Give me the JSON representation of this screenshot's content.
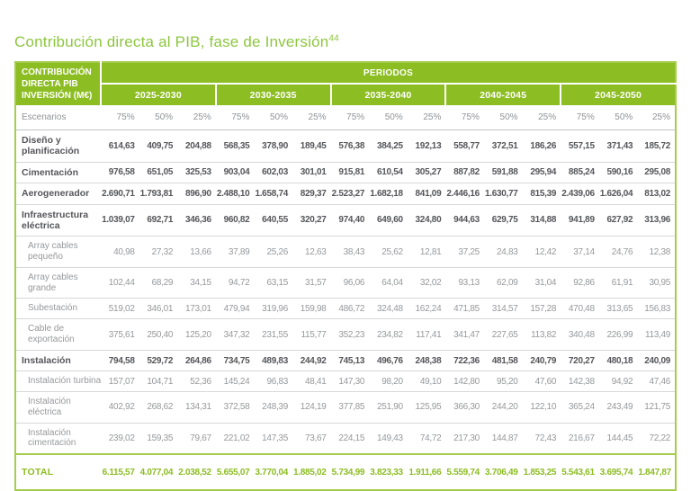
{
  "title": {
    "text": "Contribución directa al PIB, fase de Inversión",
    "superscript": "44"
  },
  "colors": {
    "header_green": "#8cbd22",
    "title_green": "#8dc63f",
    "table_border_green": "#a6cc4e",
    "main_text": "#55565a",
    "sub_text": "#96989b"
  },
  "table": {
    "corner_label": "CONTRIBUCIÓN\nDIRECTA PIB\nINVERSIÓN (M€)",
    "periodos_label": "PERIODOS",
    "periods": [
      "2025-2030",
      "2030-2035",
      "2035-2040",
      "2040-2045",
      "2045-2050"
    ],
    "scenarios_label": "Escenarios",
    "scenarios": [
      "75%",
      "50%",
      "25%"
    ],
    "rows": [
      {
        "label": "Diseño y\nplanificación",
        "type": "main",
        "values": [
          "614,63",
          "409,75",
          "204,88",
          "568,35",
          "378,90",
          "189,45",
          "576,38",
          "384,25",
          "192,13",
          "558,77",
          "372,51",
          "186,26",
          "557,15",
          "371,43",
          "185,72"
        ]
      },
      {
        "label": "Cimentación",
        "type": "main",
        "values": [
          "976,58",
          "651,05",
          "325,53",
          "903,04",
          "602,03",
          "301,01",
          "915,81",
          "610,54",
          "305,27",
          "887,82",
          "591,88",
          "295,94",
          "885,24",
          "590,16",
          "295,08"
        ]
      },
      {
        "label": "Aerogenerador",
        "type": "main",
        "values": [
          "2.690,71",
          "1.793,81",
          "896,90",
          "2.488,10",
          "1.658,74",
          "829,37",
          "2.523,27",
          "1.682,18",
          "841,09",
          "2.446,16",
          "1.630,77",
          "815,39",
          "2.439,06",
          "1.626,04",
          "813,02"
        ]
      },
      {
        "label": "Infraestructura\neléctrica",
        "type": "main",
        "values": [
          "1.039,07",
          "692,71",
          "346,36",
          "960,82",
          "640,55",
          "320,27",
          "974,40",
          "649,60",
          "324,80",
          "944,63",
          "629,75",
          "314,88",
          "941,89",
          "627,92",
          "313,96"
        ]
      },
      {
        "label": "Array cables\npequeño",
        "type": "sub",
        "values": [
          "40,98",
          "27,32",
          "13,66",
          "37,89",
          "25,26",
          "12,63",
          "38,43",
          "25,62",
          "12,81",
          "37,25",
          "24,83",
          "12,42",
          "37,14",
          "24,76",
          "12,38"
        ]
      },
      {
        "label": "Array cables\ngrande",
        "type": "sub",
        "values": [
          "102,44",
          "68,29",
          "34,15",
          "94,72",
          "63,15",
          "31,57",
          "96,06",
          "64,04",
          "32,02",
          "93,13",
          "62,09",
          "31,04",
          "92,86",
          "61,91",
          "30,95"
        ]
      },
      {
        "label": "Subestación",
        "type": "sub",
        "values": [
          "519,02",
          "346,01",
          "173,01",
          "479,94",
          "319,96",
          "159,98",
          "486,72",
          "324,48",
          "162,24",
          "471,85",
          "314,57",
          "157,28",
          "470,48",
          "313,65",
          "156,83"
        ]
      },
      {
        "label": "Cable de\nexportación",
        "type": "sub",
        "values": [
          "375,61",
          "250,40",
          "125,20",
          "347,32",
          "231,55",
          "115,77",
          "352,23",
          "234,82",
          "117,41",
          "341,47",
          "227,65",
          "113,82",
          "340,48",
          "226,99",
          "113,49"
        ]
      },
      {
        "label": "Instalación",
        "type": "main",
        "values": [
          "794,58",
          "529,72",
          "264,86",
          "734,75",
          "489,83",
          "244,92",
          "745,13",
          "496,76",
          "248,38",
          "722,36",
          "481,58",
          "240,79",
          "720,27",
          "480,18",
          "240,09"
        ]
      },
      {
        "label": "Instalación turbina",
        "type": "sub",
        "nowrap": true,
        "values": [
          "157,07",
          "104,71",
          "52,36",
          "145,24",
          "96,83",
          "48,41",
          "147,30",
          "98,20",
          "49,10",
          "142,80",
          "95,20",
          "47,60",
          "142,38",
          "94,92",
          "47,46"
        ]
      },
      {
        "label": "Instalación\neléctrica",
        "type": "sub",
        "values": [
          "402,92",
          "268,62",
          "134,31",
          "372,58",
          "248,39",
          "124,19",
          "377,85",
          "251,90",
          "125,95",
          "366,30",
          "244,20",
          "122,10",
          "365,24",
          "243,49",
          "121,75"
        ]
      },
      {
        "label": "Instalación\ncimentación",
        "type": "sub",
        "values": [
          "239,02",
          "159,35",
          "79,67",
          "221,02",
          "147,35",
          "73,67",
          "224,15",
          "149,43",
          "74,72",
          "217,30",
          "144,87",
          "72,43",
          "216,67",
          "144,45",
          "72,22"
        ]
      },
      {
        "label": "TOTAL",
        "type": "total",
        "values": [
          "6.115,57",
          "4.077,04",
          "2.038,52",
          "5.655,07",
          "3.770,04",
          "1.885,02",
          "5.734,99",
          "3.823,33",
          "1.911,66",
          "5.559,74",
          "3.706,49",
          "1.853,25",
          "5.543,61",
          "3.695,74",
          "1.847,87"
        ]
      }
    ]
  }
}
